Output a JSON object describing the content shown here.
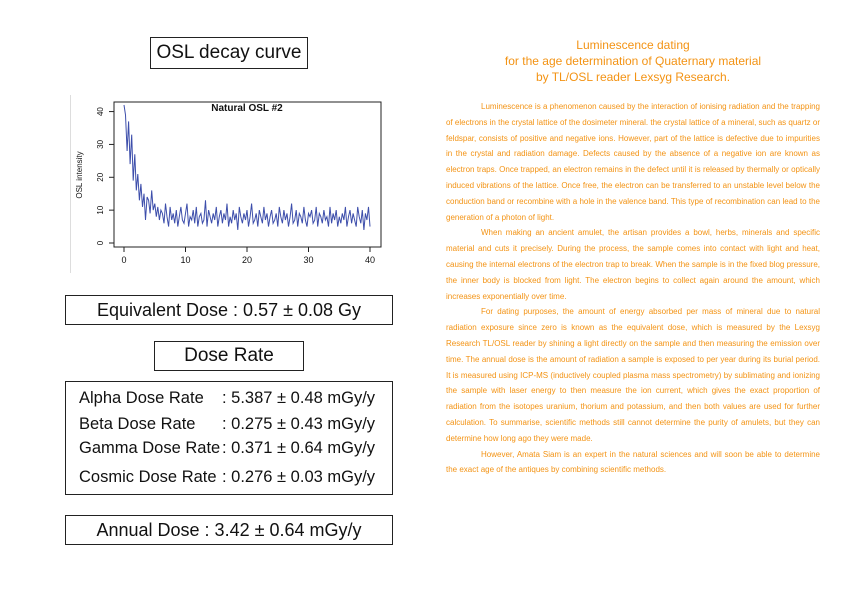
{
  "osl_title": "OSL decay curve",
  "equivalent_dose": "Equivalent Dose : 0.57 ± 0.08 Gy",
  "dose_rate_title": "Dose Rate",
  "dose_rates": [
    {
      "label": "Alpha Dose Rate",
      "value": ": 5.387 ± 0.48 mGy/y"
    },
    {
      "label": "Beta Dose Rate",
      "value": ": 0.275 ± 0.43 mGy/y"
    },
    {
      "label": "Gamma Dose Rate",
      "value": ": 0.371 ± 0.64 mGy/y"
    },
    {
      "label": "Cosmic Dose Rate",
      "value": ": 0.276 ± 0.03 mGy/y"
    }
  ],
  "annual_dose": "Annual Dose : 3.42 ± 0.64 mGy/y",
  "article": {
    "heading": [
      "Luminescence dating",
      "for the age determination of Quaternary material",
      "by TL/OSL reader Lexsyg Research."
    ],
    "paragraphs": [
      "Luminescence is a phenomenon caused by the interaction of ionising radiation and the trapping of electrons in the crystal lattice of the dosimeter mineral. the crystal lattice of a mineral, such as quartz or feldspar, consists of positive and negative ions. However, part of the lattice is defective due to impurities in the crystal and radiation damage. Defects caused by the absence of a negative ion are known as electron traps. Once trapped, an electron remains in the defect until it is released by thermally or optically induced vibrations of the lattice. Once free, the electron can be transferred to an unstable level below the conduction band or recombine with a hole in the valence band. This type of recombination can lead to the generation of a photon of light.",
      "When making an ancient amulet, the artisan provides a bowl, herbs, minerals and specific material and cuts it precisely. During the process, the sample comes into contact with light and heat, causing the internal electrons of the electron trap to break. When the sample is in the fixed blog pressure, the inner body is blocked from light. The electron begins to collect again around the amount, which increases exponentially over time.",
      "For dating purposes, the amount of energy absorbed per mass of mineral due to natural radiation exposure since zero is known as the equivalent dose, which is measured by the Lexsyg Research TL/OSL reader by shining a light directly on the sample and then measuring the emission over time. The annual dose is the amount of radiation a sample is exposed to per year during its burial period. It is measured using ICP-MS (inductively coupled plasma mass spectrometry) by sublimating and ionizing the sample with laser energy to then measure the ion current, which gives the exact proportion of radiation from the isotopes uranium, thorium and potassium, and then both values are used for further calculation. To summarise, scientific methods still cannot determine the purity of amulets, but they can determine how long ago they were made.",
      "However, Amata Siam is an expert in the natural sciences and will soon be able to determine the exact age of the antiques by combining scientific methods."
    ]
  },
  "chart_data": {
    "type": "line",
    "title": "Natural OSL #2",
    "xlabel": "",
    "ylabel": "OSL intensity",
    "xlim": [
      0,
      40
    ],
    "ylim": [
      0,
      42
    ],
    "xticks": [
      0,
      10,
      20,
      30,
      40
    ],
    "yticks": [
      0,
      10,
      20,
      30,
      40
    ],
    "grid": false,
    "line_color": "#3d4eab",
    "series": [
      {
        "x": [
          0,
          0.25,
          0.5,
          0.75,
          1,
          1.25,
          1.5,
          1.75,
          2,
          2.25,
          2.5,
          2.75,
          3,
          3.25,
          3.5,
          3.75,
          4,
          4.25,
          4.5,
          4.75,
          5,
          5.25,
          5.5,
          5.75,
          6,
          6.25,
          6.5,
          6.75,
          7,
          7.25,
          7.5,
          7.75,
          8,
          8.25,
          8.5,
          8.75,
          9,
          9.25,
          9.5,
          9.75,
          10,
          10.25,
          10.5,
          10.75,
          11,
          11.25,
          11.5,
          11.75,
          12,
          12.25,
          12.5,
          12.75,
          13,
          13.25,
          13.5,
          13.75,
          14,
          14.25,
          14.5,
          14.75,
          15,
          15.25,
          15.5,
          15.75,
          16,
          16.25,
          16.5,
          16.75,
          17,
          17.25,
          17.5,
          17.75,
          18,
          18.25,
          18.5,
          18.75,
          19,
          19.25,
          19.5,
          19.75,
          20,
          20.25,
          20.5,
          20.75,
          21,
          21.25,
          21.5,
          21.75,
          22,
          22.25,
          22.5,
          22.75,
          23,
          23.25,
          23.5,
          23.75,
          24,
          24.25,
          24.5,
          24.75,
          25,
          25.25,
          25.5,
          25.75,
          26,
          26.25,
          26.5,
          26.75,
          27,
          27.25,
          27.5,
          27.75,
          28,
          28.25,
          28.5,
          28.75,
          29,
          29.25,
          29.5,
          29.75,
          30,
          30.25,
          30.5,
          30.75,
          31,
          31.25,
          31.5,
          31.75,
          32,
          32.25,
          32.5,
          32.75,
          33,
          33.25,
          33.5,
          33.75,
          34,
          34.25,
          34.5,
          34.75,
          35,
          35.25,
          35.5,
          35.75,
          36,
          36.25,
          36.5,
          36.75,
          37,
          37.25,
          37.5,
          37.75,
          38,
          38.25,
          38.5,
          38.75,
          39,
          39.25,
          39.5,
          39.75,
          40
        ],
        "y": [
          42,
          39,
          28,
          37,
          24,
          33,
          19,
          27,
          16,
          21,
          13,
          18,
          11,
          15,
          7,
          14,
          13,
          9,
          16,
          10,
          12,
          8,
          11,
          7,
          10,
          9,
          6,
          12,
          8,
          5,
          11,
          7,
          9,
          6,
          10,
          5,
          8,
          11,
          7,
          6,
          9,
          12,
          5,
          8,
          7,
          10,
          6,
          11,
          5,
          8,
          9,
          6,
          7,
          13,
          5,
          10,
          8,
          6,
          9,
          7,
          11,
          5,
          8,
          10,
          6,
          9,
          7,
          12,
          5,
          8,
          6,
          10,
          7,
          9,
          4,
          11,
          8,
          6,
          9,
          7,
          10,
          5,
          8,
          12,
          6,
          7,
          9,
          5,
          10,
          8,
          6,
          11,
          7,
          9,
          5,
          8,
          10,
          6,
          7,
          9,
          5,
          11,
          8,
          6,
          10,
          7,
          9,
          5,
          8,
          12,
          6,
          7,
          10,
          5,
          9,
          8,
          6,
          11,
          7,
          5,
          9,
          8,
          10,
          6,
          7,
          11,
          5,
          9,
          8,
          6,
          10,
          7,
          8,
          5,
          11,
          6,
          9,
          7,
          10,
          5,
          8,
          6,
          9,
          7,
          11,
          5,
          8,
          10,
          6,
          9,
          7,
          5,
          11,
          8,
          6,
          10,
          4,
          9,
          7,
          11,
          5
        ]
      }
    ]
  }
}
